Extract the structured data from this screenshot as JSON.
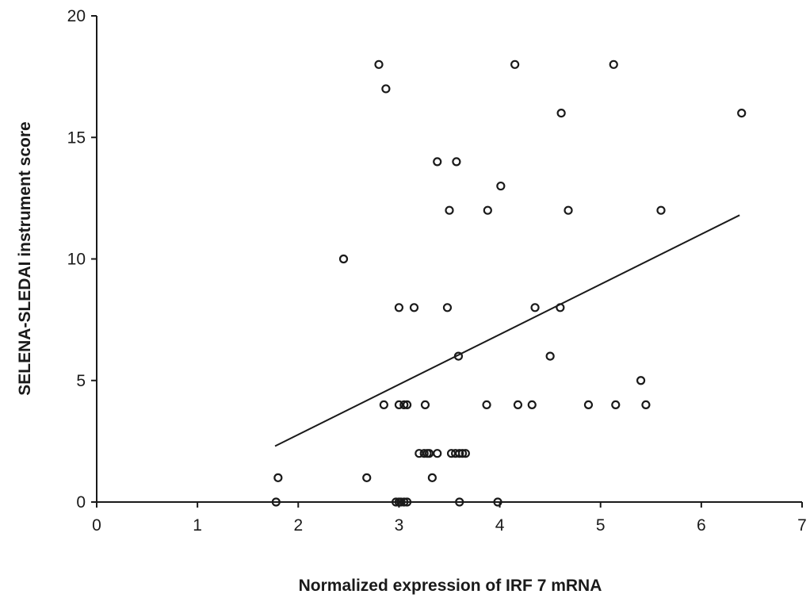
{
  "chart_data": {
    "type": "scatter",
    "title": "",
    "xlabel": "Normalized expression of IRF 7 mRNA",
    "ylabel": "SELENA-SLEDAI instrument score",
    "xlim": [
      0,
      7
    ],
    "ylim": [
      0,
      20
    ],
    "x_ticks": [
      "0",
      "1",
      "2",
      "3",
      "4",
      "5",
      "6",
      "7"
    ],
    "y_ticks": [
      "0",
      "5",
      "10",
      "15",
      "20"
    ],
    "grid": false,
    "legend": "none",
    "colors": {
      "marker": "#1a1a1a",
      "line": "#1a1a1a",
      "background": "#ffffff"
    },
    "points": [
      {
        "x": 1.78,
        "y": 0
      },
      {
        "x": 1.8,
        "y": 1
      },
      {
        "x": 2.45,
        "y": 10
      },
      {
        "x": 2.68,
        "y": 1
      },
      {
        "x": 2.8,
        "y": 18
      },
      {
        "x": 2.87,
        "y": 17
      },
      {
        "x": 2.85,
        "y": 4
      },
      {
        "x": 2.97,
        "y": 0
      },
      {
        "x": 3.0,
        "y": 0
      },
      {
        "x": 3.02,
        "y": 0
      },
      {
        "x": 3.05,
        "y": 0
      },
      {
        "x": 3.08,
        "y": 0
      },
      {
        "x": 3.0,
        "y": 8
      },
      {
        "x": 3.15,
        "y": 8
      },
      {
        "x": 3.0,
        "y": 4
      },
      {
        "x": 3.05,
        "y": 4
      },
      {
        "x": 3.08,
        "y": 4
      },
      {
        "x": 3.26,
        "y": 4
      },
      {
        "x": 3.2,
        "y": 2
      },
      {
        "x": 3.25,
        "y": 2
      },
      {
        "x": 3.28,
        "y": 2
      },
      {
        "x": 3.3,
        "y": 2
      },
      {
        "x": 3.33,
        "y": 1
      },
      {
        "x": 3.38,
        "y": 2
      },
      {
        "x": 3.38,
        "y": 14
      },
      {
        "x": 3.48,
        "y": 8
      },
      {
        "x": 3.5,
        "y": 12
      },
      {
        "x": 3.52,
        "y": 2
      },
      {
        "x": 3.56,
        "y": 2
      },
      {
        "x": 3.6,
        "y": 2
      },
      {
        "x": 3.63,
        "y": 2
      },
      {
        "x": 3.66,
        "y": 2
      },
      {
        "x": 3.57,
        "y": 14
      },
      {
        "x": 3.59,
        "y": 6
      },
      {
        "x": 3.6,
        "y": 0
      },
      {
        "x": 3.87,
        "y": 4
      },
      {
        "x": 3.88,
        "y": 12
      },
      {
        "x": 3.98,
        "y": 0
      },
      {
        "x": 4.01,
        "y": 13
      },
      {
        "x": 4.15,
        "y": 18
      },
      {
        "x": 4.18,
        "y": 4
      },
      {
        "x": 4.32,
        "y": 4
      },
      {
        "x": 4.35,
        "y": 8
      },
      {
        "x": 4.5,
        "y": 6
      },
      {
        "x": 4.6,
        "y": 8
      },
      {
        "x": 4.61,
        "y": 16
      },
      {
        "x": 4.68,
        "y": 12
      },
      {
        "x": 4.88,
        "y": 4
      },
      {
        "x": 5.13,
        "y": 18
      },
      {
        "x": 5.15,
        "y": 4
      },
      {
        "x": 5.4,
        "y": 5
      },
      {
        "x": 5.45,
        "y": 4
      },
      {
        "x": 5.6,
        "y": 12
      },
      {
        "x": 6.4,
        "y": 16
      }
    ],
    "trendline": {
      "x": [
        1.77,
        6.38
      ],
      "y": [
        2.3,
        11.8
      ]
    }
  }
}
